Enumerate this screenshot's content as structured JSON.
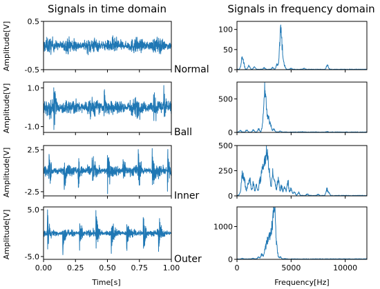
{
  "chart_data": {
    "type": "line",
    "color": "#1f77b4",
    "titles": {
      "time": "Signals in time domain",
      "freq": "Signals in frequency domain"
    },
    "time_xlabel": "Time[s]",
    "freq_xlabel": "Frequency[Hz]",
    "ylabel": "Amplitude[V]",
    "time_xlim": [
      0,
      1
    ],
    "time_xticks": [
      0,
      0.25,
      0.5,
      0.75,
      1.0
    ],
    "time_xticklabels": [
      "0.00",
      "0.25",
      "0.50",
      "0.75",
      "1.00"
    ],
    "freq_xlim": [
      0,
      12000
    ],
    "freq_xticks": [
      0,
      5000,
      10000
    ],
    "freq_xticklabels": [
      "0",
      "5000",
      "10000"
    ],
    "rows": [
      {
        "condition": "Normal",
        "time": {
          "ylim": [
            -0.5,
            0.5
          ],
          "yticks": [
            -0.5,
            0.5
          ],
          "yticklabels": [
            "-0.5",
            "0.5"
          ],
          "envelope": 0.22,
          "impulse_times": []
        },
        "freq": {
          "ylim": [
            0,
            120
          ],
          "yticks": [
            0,
            50,
            100
          ],
          "yticklabels": [
            "0",
            "50",
            "100"
          ],
          "peaks": [
            {
              "f": 450,
              "a": 30
            },
            {
              "f": 600,
              "a": 20
            },
            {
              "f": 1100,
              "a": 12
            },
            {
              "f": 1600,
              "a": 8
            },
            {
              "f": 2500,
              "a": 5
            },
            {
              "f": 3300,
              "a": 6
            },
            {
              "f": 3700,
              "a": 15
            },
            {
              "f": 3950,
              "a": 30
            },
            {
              "f": 4050,
              "a": 108
            },
            {
              "f": 4200,
              "a": 40
            },
            {
              "f": 4400,
              "a": 10
            },
            {
              "f": 5000,
              "a": 3
            },
            {
              "f": 6200,
              "a": 3
            },
            {
              "f": 8350,
              "a": 15
            }
          ]
        }
      },
      {
        "condition": "Ball",
        "time": {
          "ylim": [
            -1.3,
            1.3
          ],
          "yticks": [
            -1.0,
            1.0
          ],
          "yticklabels": [
            "-1.0",
            "1.0"
          ],
          "envelope": 0.65,
          "impulse_times": [
            0.08,
            0.47,
            0.86,
            0.94
          ]
        },
        "freq": {
          "ylim": [
            0,
            750
          ],
          "yticks": [
            0,
            500
          ],
          "yticklabels": [
            "0",
            "500"
          ],
          "peaks": [
            {
              "f": 300,
              "a": 30
            },
            {
              "f": 900,
              "a": 40
            },
            {
              "f": 1500,
              "a": 40
            },
            {
              "f": 2000,
              "a": 60
            },
            {
              "f": 2400,
              "a": 150
            },
            {
              "f": 2550,
              "a": 690
            },
            {
              "f": 2700,
              "a": 380
            },
            {
              "f": 2900,
              "a": 250
            },
            {
              "f": 3100,
              "a": 140
            },
            {
              "f": 3400,
              "a": 60
            },
            {
              "f": 4000,
              "a": 20
            },
            {
              "f": 6000,
              "a": 5
            },
            {
              "f": 8300,
              "a": 10
            }
          ]
        }
      },
      {
        "condition": "Inner",
        "time": {
          "ylim": [
            -3.0,
            3.0
          ],
          "yticks": [
            -2.5,
            2.5
          ],
          "yticklabels": [
            "-2.5",
            "2.5"
          ],
          "envelope": 0.9,
          "impulse_times": [
            0.04,
            0.16,
            0.27,
            0.38,
            0.5,
            0.62,
            0.74,
            0.85,
            0.97
          ]
        },
        "freq": {
          "ylim": [
            0,
            500
          ],
          "yticks": [
            0,
            250,
            500
          ],
          "yticklabels": [
            "0",
            "250",
            "500"
          ],
          "peaks": [
            {
              "f": 300,
              "a": 30
            },
            {
              "f": 500,
              "a": 280
            },
            {
              "f": 700,
              "a": 180
            },
            {
              "f": 1000,
              "a": 140
            },
            {
              "f": 1200,
              "a": 180
            },
            {
              "f": 1500,
              "a": 150
            },
            {
              "f": 1800,
              "a": 120
            },
            {
              "f": 2100,
              "a": 170
            },
            {
              "f": 2300,
              "a": 280
            },
            {
              "f": 2500,
              "a": 370
            },
            {
              "f": 2700,
              "a": 450
            },
            {
              "f": 2850,
              "a": 340
            },
            {
              "f": 3000,
              "a": 210
            },
            {
              "f": 3300,
              "a": 270
            },
            {
              "f": 3500,
              "a": 160
            },
            {
              "f": 3800,
              "a": 240
            },
            {
              "f": 4100,
              "a": 130
            },
            {
              "f": 4400,
              "a": 110
            },
            {
              "f": 4700,
              "a": 180
            },
            {
              "f": 5000,
              "a": 90
            },
            {
              "f": 5300,
              "a": 50
            },
            {
              "f": 5700,
              "a": 40
            },
            {
              "f": 6500,
              "a": 20
            },
            {
              "f": 7500,
              "a": 15
            },
            {
              "f": 8300,
              "a": 80
            },
            {
              "f": 8500,
              "a": 30
            }
          ]
        }
      },
      {
        "condition": "Outer",
        "time": {
          "ylim": [
            -5.6,
            5.6
          ],
          "yticks": [
            -5.0,
            5.0
          ],
          "yticklabels": [
            "-5.0",
            "5.0"
          ],
          "envelope": 1.0,
          "impulse_times": [
            0.03,
            0.15,
            0.28,
            0.41,
            0.53,
            0.65,
            0.78,
            0.9
          ]
        },
        "freq": {
          "ylim": [
            0,
            1600
          ],
          "yticks": [
            0,
            1000
          ],
          "yticklabels": [
            "0",
            "1000"
          ],
          "peaks": [
            {
              "f": 500,
              "a": 20
            },
            {
              "f": 1500,
              "a": 30
            },
            {
              "f": 2000,
              "a": 80
            },
            {
              "f": 2300,
              "a": 200
            },
            {
              "f": 2600,
              "a": 450
            },
            {
              "f": 2800,
              "a": 700
            },
            {
              "f": 3000,
              "a": 850
            },
            {
              "f": 3200,
              "a": 1000
            },
            {
              "f": 3350,
              "a": 800
            },
            {
              "f": 3450,
              "a": 1500
            },
            {
              "f": 3550,
              "a": 600
            },
            {
              "f": 3700,
              "a": 300
            },
            {
              "f": 4000,
              "a": 80
            },
            {
              "f": 4500,
              "a": 20
            }
          ]
        }
      }
    ]
  }
}
